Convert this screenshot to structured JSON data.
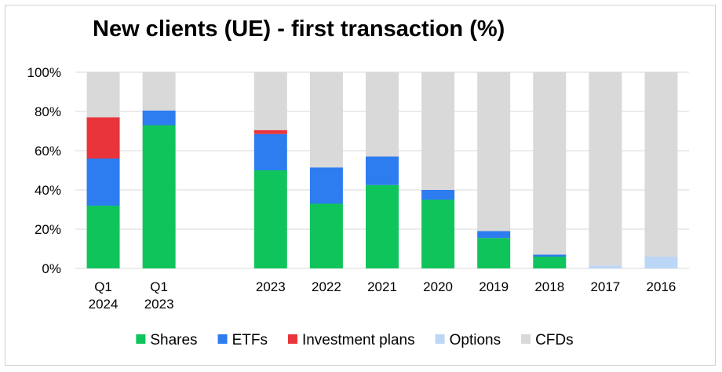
{
  "chart_data": {
    "type": "bar",
    "stacked": true,
    "title": "New clients (UE) - first transaction (%)",
    "xlabel": "",
    "ylabel": "",
    "ylim": [
      0,
      100
    ],
    "yticks": [
      "0%",
      "20%",
      "40%",
      "60%",
      "80%",
      "100%"
    ],
    "grid": true,
    "legend_position": "bottom",
    "categories": [
      {
        "line1": "Q1",
        "line2": "2024"
      },
      {
        "line1": "Q1",
        "line2": "2023"
      },
      {
        "line1": "",
        "line2": ""
      },
      {
        "line1": "2023",
        "line2": ""
      },
      {
        "line1": "2022",
        "line2": ""
      },
      {
        "line1": "2021",
        "line2": ""
      },
      {
        "line1": "2020",
        "line2": ""
      },
      {
        "line1": "2019",
        "line2": ""
      },
      {
        "line1": "2018",
        "line2": ""
      },
      {
        "line1": "2017",
        "line2": ""
      },
      {
        "line1": "2016",
        "line2": ""
      }
    ],
    "series": [
      {
        "name": "Shares",
        "color": "#10c45c",
        "values": [
          32,
          73,
          0,
          50,
          33,
          42.5,
          35,
          15.5,
          6,
          0,
          0
        ]
      },
      {
        "name": "ETFs",
        "color": "#2d7cf0",
        "values": [
          24,
          7.5,
          0,
          18.5,
          18.5,
          14.5,
          5,
          3.5,
          1,
          0,
          0
        ]
      },
      {
        "name": "Investment plans",
        "color": "#e8343a",
        "values": [
          21,
          0,
          0,
          2,
          0,
          0,
          0,
          0,
          0,
          0,
          0
        ]
      },
      {
        "name": "Options",
        "color": "#bcd6f6",
        "values": [
          0,
          0,
          0,
          0,
          0,
          0,
          0,
          0,
          0,
          1.5,
          6
        ]
      },
      {
        "name": "CFDs",
        "color": "#d9d9d9",
        "values": [
          23,
          19.5,
          0,
          29.5,
          48.5,
          43,
          60,
          81,
          93,
          98.5,
          94
        ]
      }
    ]
  }
}
